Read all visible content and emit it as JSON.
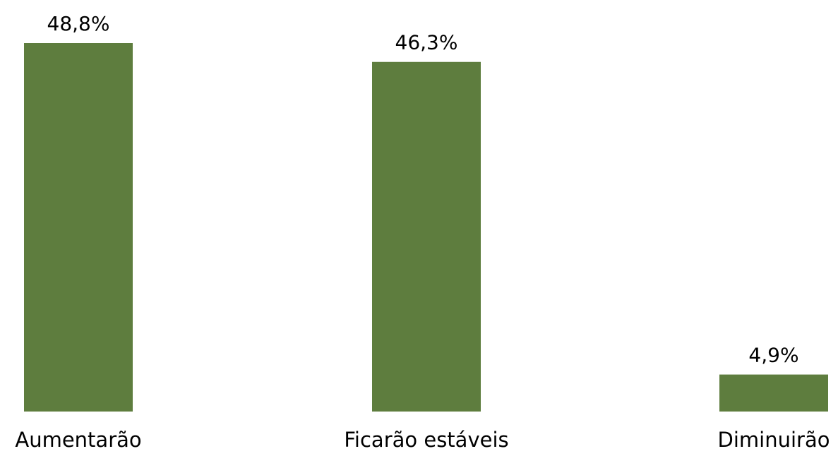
{
  "chart_data": {
    "type": "bar",
    "categories": [
      "Aumentarão",
      "Ficarão estáveis",
      "Diminuirão"
    ],
    "values": [
      48.8,
      46.3,
      4.9
    ],
    "value_labels": [
      "48,8%",
      "46,3%",
      "4,9%"
    ],
    "title": "",
    "xlabel": "",
    "ylabel": "",
    "ylim": [
      0,
      48.8
    ],
    "grid": false,
    "legend": "none",
    "bar_color": "#5e7d3e"
  }
}
